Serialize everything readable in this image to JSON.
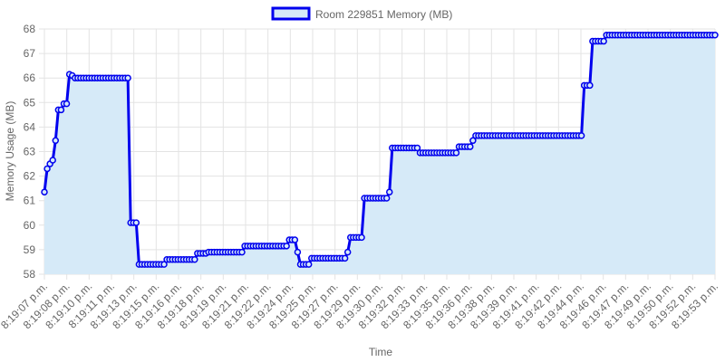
{
  "chart_data": {
    "type": "area",
    "xlabel": "Time",
    "ylabel": "Memory Usage (MB)",
    "ylim": [
      58,
      68
    ],
    "yticks": [
      58,
      59,
      60,
      61,
      62,
      63,
      64,
      65,
      66,
      67,
      68
    ],
    "grid": true,
    "legend": "top-center",
    "x_tick_labels": [
      "8:19:07 p.m.",
      "8:19:08 p.m.",
      "8:19:10 p.m.",
      "8:19:11 p.m.",
      "8:19:13 p.m.",
      "8:19:15 p.m.",
      "8:19:16 p.m.",
      "8:19:18 p.m.",
      "8:19:19 p.m.",
      "8:19:21 p.m.",
      "8:19:22 p.m.",
      "8:19:24 p.m.",
      "8:19:25 p.m.",
      "8:19:27 p.m.",
      "8:19:29 p.m.",
      "8:19:30 p.m.",
      "8:19:32 p.m.",
      "8:19:33 p.m.",
      "8:19:35 p.m.",
      "8:19:36 p.m.",
      "8:19:38 p.m.",
      "8:19:39 p.m.",
      "8:19:41 p.m.",
      "8:19:42 p.m.",
      "8:19:44 p.m.",
      "8:19:46 p.m.",
      "8:19:47 p.m.",
      "8:19:49 p.m.",
      "8:19:50 p.m.",
      "8:19:52 p.m.",
      "8:19:53 p.m."
    ],
    "series": [
      {
        "name": "Room 229851 Memory (MB)",
        "color": "#0000ee",
        "fill": "#d6eaf8",
        "values": [
          61.35,
          62.3,
          62.5,
          62.65,
          63.45,
          64.7,
          64.7,
          64.95,
          64.95,
          66.15,
          66.1,
          66.0,
          66.0,
          66.0,
          66.0,
          66.0,
          66.0,
          66.0,
          66.0,
          66.0,
          66.0,
          66.0,
          66.0,
          66.0,
          66.0,
          66.0,
          66.0,
          66.0,
          66.0,
          66.0,
          66.0,
          60.1,
          60.1,
          60.1,
          58.4,
          58.4,
          58.4,
          58.4,
          58.4,
          58.4,
          58.4,
          58.4,
          58.4,
          58.4,
          58.6,
          58.6,
          58.6,
          58.6,
          58.6,
          58.6,
          58.6,
          58.6,
          58.6,
          58.6,
          58.6,
          58.85,
          58.85,
          58.85,
          58.85,
          58.9,
          58.9,
          58.9,
          58.9,
          58.9,
          58.9,
          58.9,
          58.9,
          58.9,
          58.9,
          58.9,
          58.9,
          58.9,
          59.15,
          59.15,
          59.15,
          59.15,
          59.15,
          59.15,
          59.15,
          59.15,
          59.15,
          59.15,
          59.15,
          59.15,
          59.15,
          59.15,
          59.15,
          59.15,
          59.4,
          59.4,
          59.4,
          58.9,
          58.4,
          58.4,
          58.4,
          58.4,
          58.65,
          58.65,
          58.65,
          58.65,
          58.65,
          58.65,
          58.65,
          58.65,
          58.65,
          58.65,
          58.65,
          58.65,
          58.65,
          58.9,
          59.5,
          59.5,
          59.5,
          59.5,
          59.5,
          61.1,
          61.1,
          61.1,
          61.1,
          61.1,
          61.1,
          61.1,
          61.1,
          61.1,
          61.35,
          63.15,
          63.15,
          63.15,
          63.15,
          63.15,
          63.15,
          63.15,
          63.15,
          63.15,
          63.15,
          62.95,
          62.95,
          62.95,
          62.95,
          62.95,
          62.95,
          62.95,
          62.95,
          62.95,
          62.95,
          62.95,
          62.95,
          62.95,
          62.95,
          63.2,
          63.2,
          63.2,
          63.2,
          63.2,
          63.45,
          63.65,
          63.65,
          63.65,
          63.65,
          63.65,
          63.65,
          63.65,
          63.65,
          63.65,
          63.65,
          63.65,
          63.65,
          63.65,
          63.65,
          63.65,
          63.65,
          63.65,
          63.65,
          63.65,
          63.65,
          63.65,
          63.65,
          63.65,
          63.65,
          63.65,
          63.65,
          63.65,
          63.65,
          63.65,
          63.65,
          63.65,
          63.65,
          63.65,
          63.65,
          63.65,
          63.65,
          63.65,
          63.65,
          63.65,
          65.7,
          65.7,
          65.7,
          67.5,
          67.5,
          67.5,
          67.5,
          67.5,
          67.75,
          67.75,
          67.75,
          67.75,
          67.75,
          67.75,
          67.75,
          67.75,
          67.75,
          67.75,
          67.75,
          67.75,
          67.75,
          67.75,
          67.75,
          67.75,
          67.75,
          67.75,
          67.75,
          67.75,
          67.75,
          67.75,
          67.75,
          67.75,
          67.75,
          67.75,
          67.75,
          67.75,
          67.75,
          67.75,
          67.75,
          67.75,
          67.75,
          67.75,
          67.75,
          67.75,
          67.75,
          67.75,
          67.75,
          67.75
        ]
      }
    ]
  }
}
